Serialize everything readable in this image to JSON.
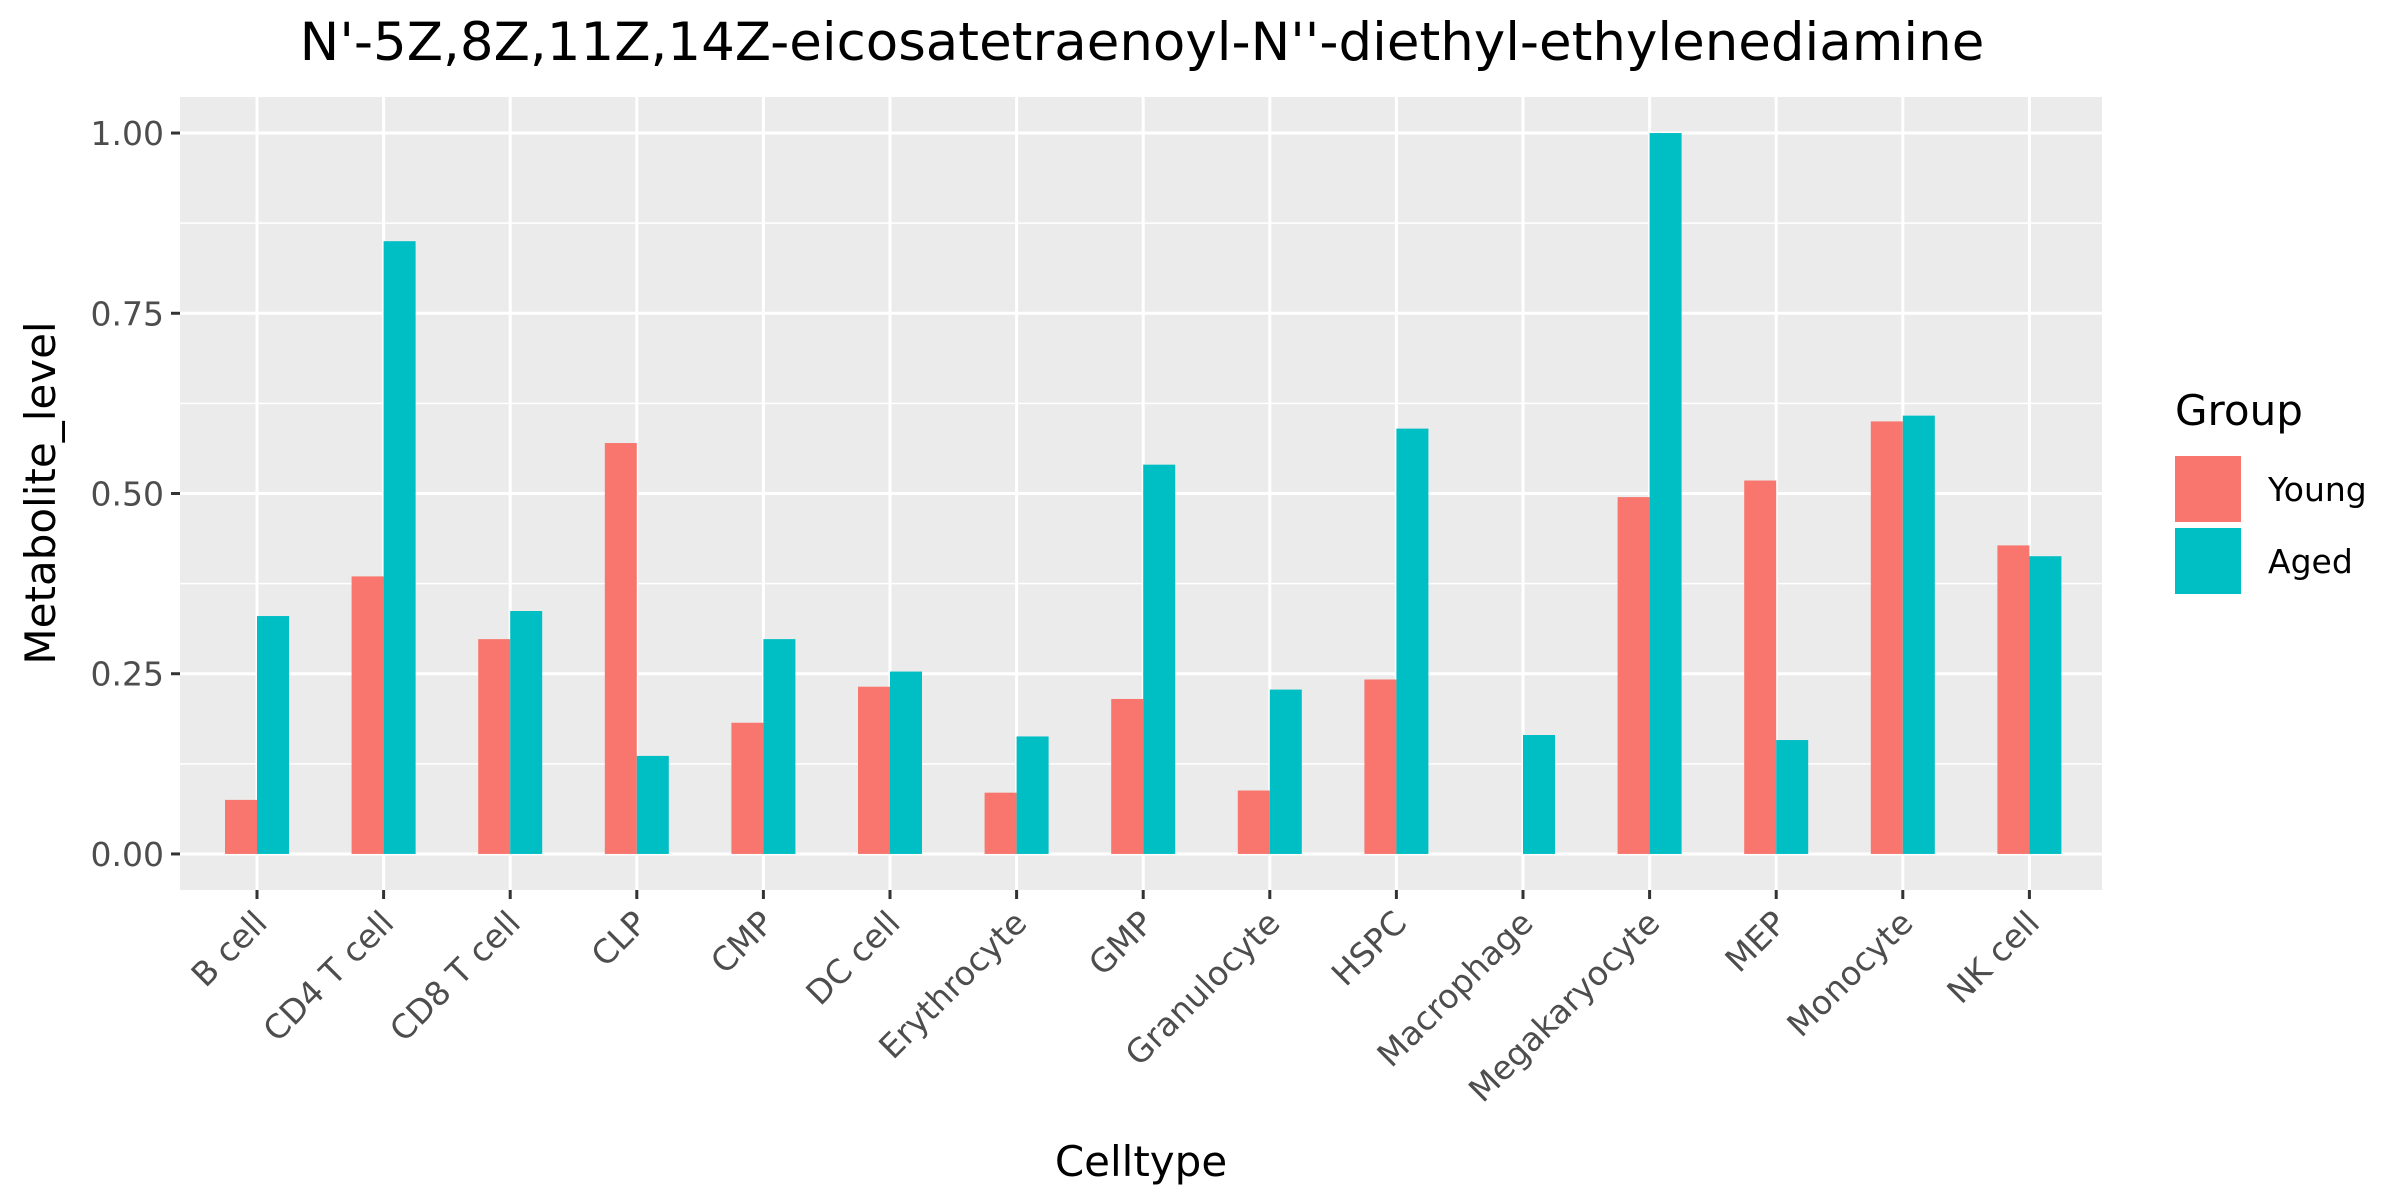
{
  "chart_data": {
    "type": "bar",
    "title": "N'-5Z,8Z,11Z,14Z-eicosatetraenoyl-N''-diethyl-ethylenediamine",
    "xlabel": "Celltype",
    "ylabel": "Metabolite_level",
    "ylim": [
      -0.05,
      1.05
    ],
    "yticks": [
      0.0,
      0.25,
      0.5,
      0.75,
      1.0
    ],
    "ytick_labels": [
      "0.00",
      "0.25",
      "0.50",
      "0.75",
      "1.00"
    ],
    "grid": true,
    "legend": {
      "title": "Group",
      "position": "right"
    },
    "categories": [
      "B cell",
      "CD4 T cell",
      "CD8 T cell",
      "CLP",
      "CMP",
      "DC cell",
      "Erythrocyte",
      "GMP",
      "Granulocyte",
      "HSPC",
      "Macrophage",
      "Megakaryocyte",
      "MEP",
      "Monocyte",
      "NK cell"
    ],
    "series": [
      {
        "name": "Young",
        "color": "#F8766D",
        "values": [
          0.075,
          0.385,
          0.298,
          0.57,
          0.182,
          0.232,
          0.085,
          0.215,
          0.088,
          0.242,
          0.0,
          0.495,
          0.518,
          0.6,
          0.428
        ]
      },
      {
        "name": "Aged",
        "color": "#00BFC4",
        "values": [
          0.33,
          0.85,
          0.337,
          0.136,
          0.298,
          0.253,
          0.163,
          0.54,
          0.228,
          0.59,
          0.165,
          1.0,
          0.158,
          0.608,
          0.413
        ]
      }
    ]
  }
}
